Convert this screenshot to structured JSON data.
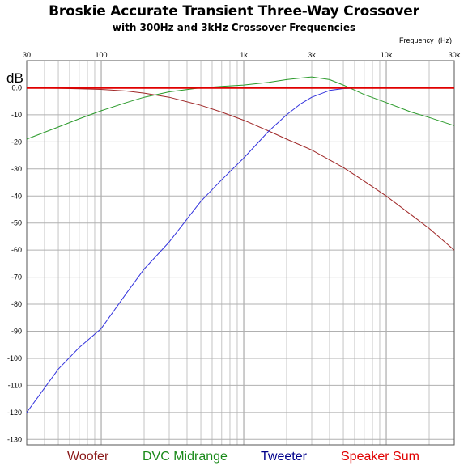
{
  "title": "Broskie Accurate Transient Three-Way Crossover",
  "subtitle": "with 300Hz and 3kHz Crossover Frequencies",
  "x_axis": {
    "label": "Frequency",
    "unit": "(Hz)"
  },
  "y_axis": {
    "label": "dB"
  },
  "legend": [
    {
      "label": "Woofer",
      "color": "#8b1a1a"
    },
    {
      "label": "DVC Midrange",
      "color": "#1a8a1a"
    },
    {
      "label": "Tweeter",
      "color": "#00008b"
    },
    {
      "label": "Speaker Sum",
      "color": "#e00000"
    }
  ],
  "chart_data": {
    "type": "line",
    "title": "Broskie Accurate Transient Three-Way Crossover",
    "subtitle": "with 300Hz and 3kHz Crossover Frequencies",
    "xlabel": "Frequency (Hz)",
    "ylabel": "dB",
    "xscale": "log",
    "xlim": [
      30,
      30000
    ],
    "ylim": [
      -132,
      10
    ],
    "x_ticks": [
      {
        "value": 30,
        "label": "30"
      },
      {
        "value": 100,
        "label": "100"
      },
      {
        "value": 1000,
        "label": "1k"
      },
      {
        "value": 3000,
        "label": "3k"
      },
      {
        "value": 10000,
        "label": "10k"
      },
      {
        "value": 30000,
        "label": "30k"
      }
    ],
    "y_ticks": [
      {
        "value": 0,
        "label": "0.0"
      },
      {
        "value": -10,
        "label": "-10"
      },
      {
        "value": -20,
        "label": "-20"
      },
      {
        "value": -30,
        "label": "-30"
      },
      {
        "value": -40,
        "label": "-40"
      },
      {
        "value": -50,
        "label": "-50"
      },
      {
        "value": -60,
        "label": "-60"
      },
      {
        "value": -70,
        "label": "-70"
      },
      {
        "value": -80,
        "label": "-80"
      },
      {
        "value": -90,
        "label": "-90"
      },
      {
        "value": -100,
        "label": "-100"
      },
      {
        "value": -110,
        "label": "-110"
      },
      {
        "value": -120,
        "label": "-120"
      },
      {
        "value": -130,
        "label": "-130"
      }
    ],
    "grid": true,
    "legend_position": "bottom",
    "series": [
      {
        "name": "Woofer",
        "color": "#a02828",
        "x": [
          30,
          50,
          70,
          100,
          150,
          200,
          300,
          500,
          700,
          1000,
          1500,
          2000,
          3000,
          5000,
          7000,
          10000,
          15000,
          20000,
          30000
        ],
        "y": [
          -0.1,
          -0.2,
          -0.4,
          -0.6,
          -1.2,
          -2.0,
          -3.5,
          -6.5,
          -9.0,
          -12.0,
          -16.0,
          -19.0,
          -23.0,
          -29.5,
          -34.5,
          -40.0,
          -47.0,
          -52.0,
          -60.0
        ]
      },
      {
        "name": "DVC Midrange",
        "color": "#2a9a2a",
        "x": [
          30,
          50,
          70,
          100,
          150,
          200,
          300,
          500,
          700,
          1000,
          1500,
          2000,
          3000,
          4000,
          5000,
          7000,
          10000,
          15000,
          20000,
          30000
        ],
        "y": [
          -19.0,
          -14.5,
          -11.5,
          -8.5,
          -5.5,
          -3.5,
          -1.5,
          0.0,
          0.5,
          1.0,
          2.0,
          3.0,
          4.0,
          3.0,
          1.0,
          -2.5,
          -5.5,
          -9.0,
          -11.0,
          -14.0
        ]
      },
      {
        "name": "Tweeter",
        "color": "#3333dd",
        "x": [
          30,
          50,
          70,
          100,
          150,
          200,
          300,
          500,
          700,
          1000,
          1500,
          2000,
          2500,
          3000,
          4000,
          5000,
          7000,
          10000,
          30000
        ],
        "y": [
          -120.0,
          -104.0,
          -96.0,
          -89.0,
          -76.0,
          -67.0,
          -57.0,
          -42.0,
          -34.0,
          -26.0,
          -16.0,
          -10.0,
          -6.0,
          -3.5,
          -1.0,
          -0.3,
          0.0,
          0.0,
          0.0
        ]
      },
      {
        "name": "Speaker Sum",
        "color": "#e00000",
        "x": [
          30,
          30000
        ],
        "y": [
          0.0,
          0.0
        ]
      }
    ]
  }
}
